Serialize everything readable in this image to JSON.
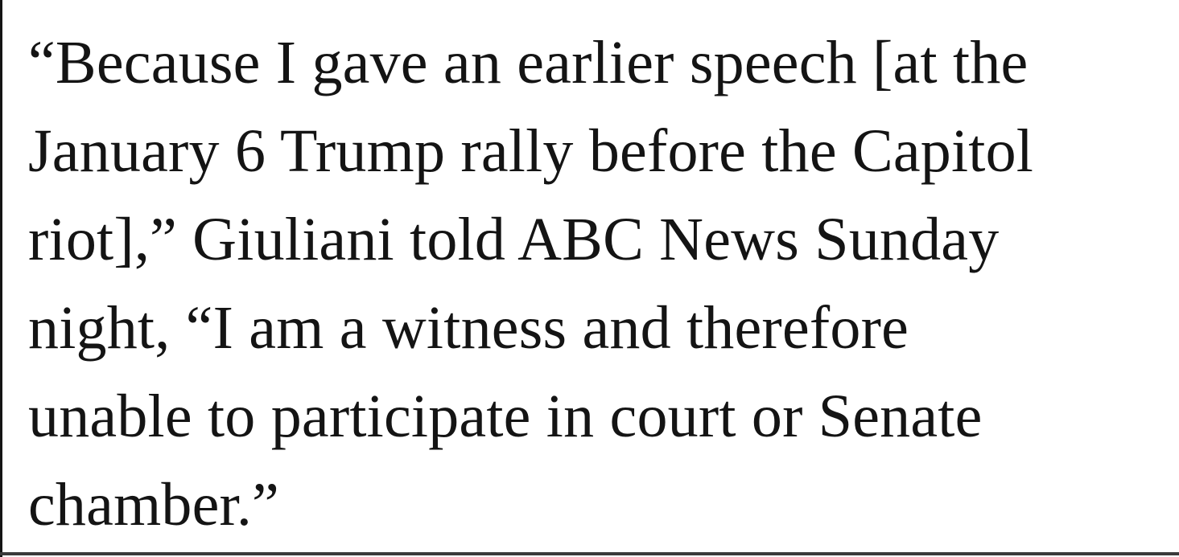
{
  "page": {
    "background_color": "#ffffff",
    "text_color": "#141414",
    "left_edge_line_color": "#141414",
    "bottom_rule_color": "#3a3a3a"
  },
  "quote": {
    "full_text": "“Because I gave an earlier speech [at the January 6 Trump rally before the Capitol riot],” Giuliani told ABC News Sunday night, “I am a witness and therefore unable to participate in court or Senate chamber.”",
    "lines": [
      "“Because I gave an earlier speech [at the",
      "January 6 Trump rally before the Capitol",
      "riot],” Giuliani told ABC News Sunday",
      "night, “I am a witness and therefore",
      "unable to participate in court or Senate",
      "chamber.”"
    ]
  }
}
